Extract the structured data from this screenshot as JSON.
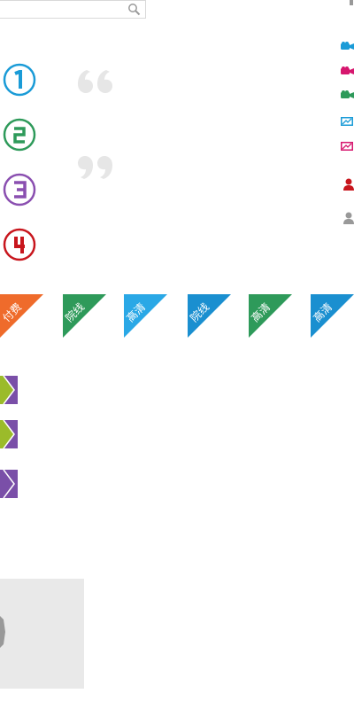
{
  "search": {
    "placeholder": "",
    "value": ""
  },
  "numbers": [
    {
      "label": "1",
      "color": "#1a9bd7"
    },
    {
      "label": "2",
      "color": "#2e9a5a"
    },
    {
      "label": "3",
      "color": "#8a4fb0"
    },
    {
      "label": "4",
      "color": "#c8161d"
    }
  ],
  "quotes": {
    "open": "“",
    "close": "”",
    "color": "#e6e6e6"
  },
  "right_icons": [
    {
      "icon": "video-camera-icon",
      "color": "#1a9bd7"
    },
    {
      "icon": "video-camera-icon",
      "color": "#d6166e"
    },
    {
      "icon": "video-camera-icon",
      "color": "#2e9a5a"
    },
    {
      "icon": "picture-icon",
      "color": "#1a9bd7"
    },
    {
      "icon": "picture-icon",
      "color": "#d6166e"
    },
    {
      "icon": "user-icon",
      "color": "#c8161d"
    },
    {
      "icon": "user-icon",
      "color": "#999999"
    }
  ],
  "badges": [
    {
      "label": "付费",
      "color": "#ef6b2b"
    },
    {
      "label": "院线",
      "color": "#2e9a5a"
    },
    {
      "label": "高清",
      "color": "#2aa8e6"
    },
    {
      "label": "院线",
      "color": "#1a8fd0"
    },
    {
      "label": "高清",
      "color": "#2e9a5a"
    },
    {
      "label": "高清",
      "color": "#1a8fd0"
    }
  ],
  "arrows": {
    "green": "#9bbb2a",
    "purple": "#7a4fa8"
  }
}
